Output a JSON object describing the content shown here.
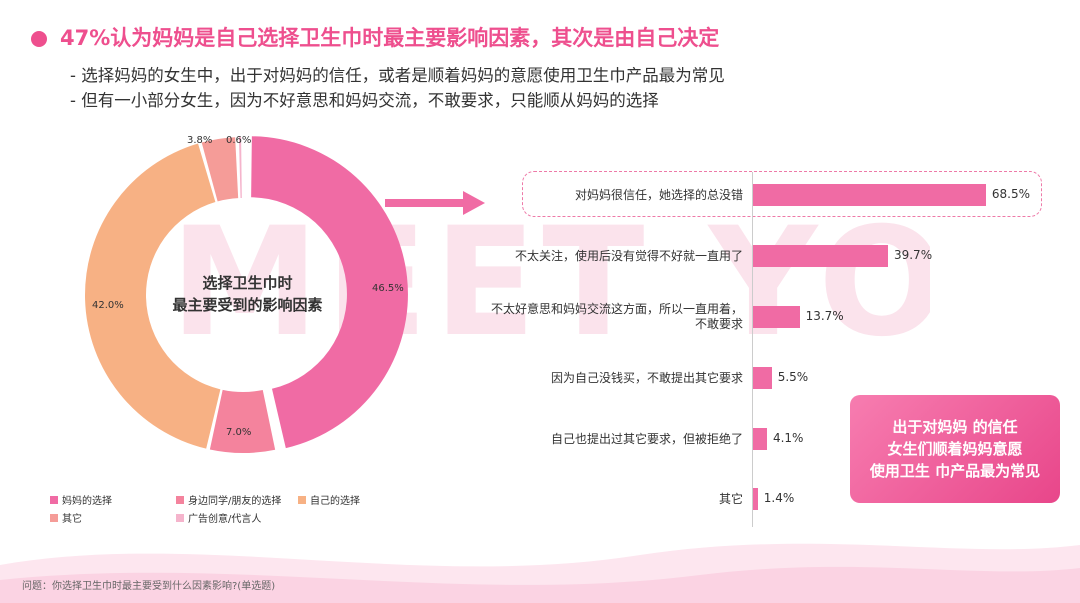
{
  "header": {
    "title": "47%认为妈妈是自己选择卫生巾时最主要影响因素，其次是由自己决定",
    "bullets": [
      "- 选择妈妈的女生中，出于对妈妈的信任，或者是顺着妈妈的意愿使用卫生巾产品最为常见",
      "- 但有一小部分女生，因为不好意思和妈妈交流，不敢要求，只能顺从妈妈的选择"
    ]
  },
  "watermark": "MEET YOU",
  "chart_data": [
    {
      "type": "pie",
      "donut": true,
      "title": "选择卫生巾时最主要受到的影响因素",
      "center_lines": [
        "选择卫生巾时",
        "最主要受到的影响因素"
      ],
      "slices": [
        {
          "name": "妈妈的选择",
          "value": 46.5,
          "label": "46.5%",
          "color": "#f06ba4",
          "exploded": true
        },
        {
          "name": "身边同学/朋友的选择",
          "value": 7.0,
          "label": "7.0%",
          "color": "#f4839d",
          "exploded": false
        },
        {
          "name": "自己的选择",
          "value": 42.0,
          "label": "42.0%",
          "color": "#f7b184",
          "exploded": false
        },
        {
          "name": "其它",
          "value": 3.8,
          "label": "3.8%",
          "color": "#f59c98",
          "exploded": false
        },
        {
          "name": "广告创意/代言人",
          "value": 0.6,
          "label": "0.6%",
          "color": "#f5b4cc",
          "exploded": false
        }
      ],
      "legend": {
        "placement": "bottom-left",
        "rows": [
          [
            "妈妈的选择",
            "身边同学/朋友的选择",
            "自己的选择"
          ],
          [
            "其它",
            "广告创意/代言人"
          ]
        ]
      }
    },
    {
      "type": "bar",
      "orientation": "horizontal",
      "categories": [
        "对妈妈很信任，她选择的总没错",
        "不太关注，使用后没有觉得不好就一直用了",
        "不太好意思和妈妈交流这方面，所以一直用着，不敢要求",
        "因为自己没钱买，不敢提出其它要求",
        "自己也提出过其它要求，但被拒绝了",
        "其它"
      ],
      "category_lines": [
        [
          "对妈妈很信任，她选择的总没错"
        ],
        [
          "不太关注，使用后没有觉得不好就一直用了"
        ],
        [
          "不太好意思和妈妈交流这方面，所以一直用着，",
          "不敢要求"
        ],
        [
          "因为自己没钱买，不敢提出其它要求"
        ],
        [
          "自己也提出过其它要求，但被拒绝了"
        ],
        [
          "其它"
        ]
      ],
      "values": [
        68.5,
        39.7,
        13.7,
        5.5,
        4.1,
        1.4
      ],
      "value_labels": [
        "68.5%",
        "39.7%",
        "13.7%",
        "5.5%",
        "4.1%",
        "1.4%"
      ],
      "xlim": [
        0,
        100
      ],
      "bar_color": "#f06ba4",
      "highlighted_category": "对妈妈很信任，她选择的总没错"
    }
  ],
  "callout": {
    "lines": [
      "出于对妈妈 的信任",
      "女生们顺着妈妈意愿",
      "使用卫生 巾产品最为常见"
    ]
  },
  "footnote": "问题：你选择卫生巾时最主要受到什么因素影响?(单选题)",
  "colors": {
    "accent": "#ee4f8e",
    "bar": "#f06ba4",
    "callout_gradient": [
      "#f77db0",
      "#e8468a"
    ]
  }
}
